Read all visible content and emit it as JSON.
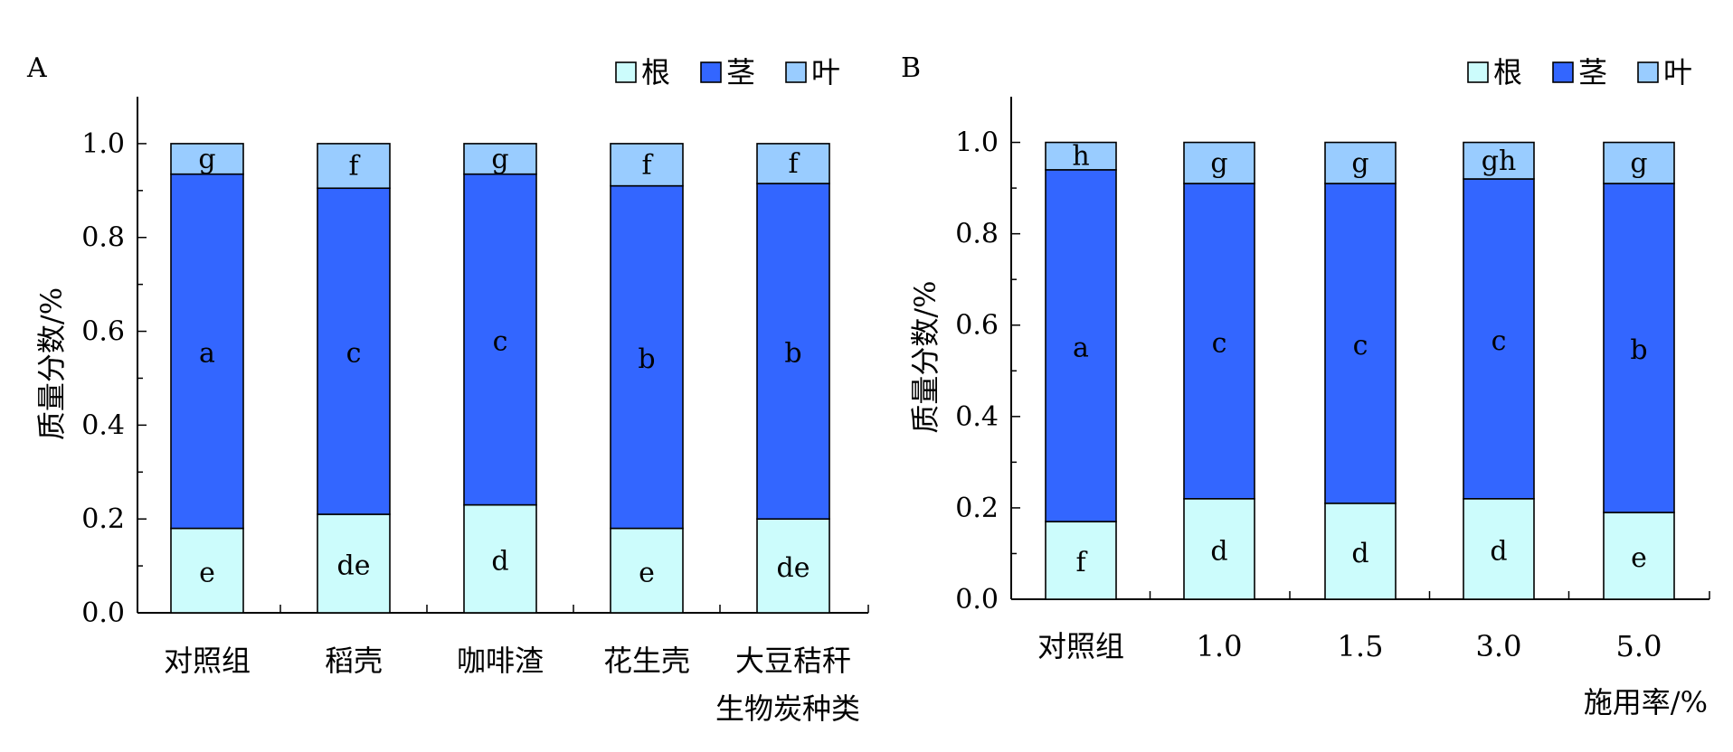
{
  "chart_data": [
    {
      "panel_label": "A",
      "type": "bar",
      "stacked": true,
      "xlabel": "生物炭种类",
      "ylabel": "质量分数/%",
      "ylim": [
        0,
        1.1
      ],
      "yticks": [
        "0.0",
        "0.2",
        "0.4",
        "0.6",
        "0.8",
        "1.0"
      ],
      "legend_position": "top-right",
      "categories": [
        "对照组",
        "稻壳",
        "咖啡渣",
        "花生壳",
        "大豆秸秆"
      ],
      "series": [
        {
          "name": "根",
          "color": "#ccfcfc",
          "values": [
            0.18,
            0.21,
            0.23,
            0.18,
            0.2
          ],
          "letters": [
            "e",
            "de",
            "d",
            "e",
            "de"
          ]
        },
        {
          "name": "茎",
          "color": "#3366ff",
          "values": [
            0.755,
            0.695,
            0.705,
            0.73,
            0.715
          ],
          "letters": [
            "a",
            "c",
            "c",
            "b",
            "b"
          ]
        },
        {
          "name": "叶",
          "color": "#99ccff",
          "values": [
            0.065,
            0.095,
            0.065,
            0.09,
            0.085
          ],
          "letters": [
            "g",
            "f",
            "g",
            "f",
            "f"
          ]
        }
      ]
    },
    {
      "panel_label": "B",
      "type": "bar",
      "stacked": true,
      "xlabel": "施用率/%",
      "ylabel": "质量分数/%",
      "ylim": [
        0,
        1.1
      ],
      "yticks": [
        "0.0",
        "0.2",
        "0.4",
        "0.6",
        "0.8",
        "1.0"
      ],
      "legend_position": "top-right",
      "categories": [
        "对照组",
        "1.0",
        "1.5",
        "3.0",
        "5.0"
      ],
      "series": [
        {
          "name": "根",
          "color": "#ccfcfc",
          "values": [
            0.17,
            0.22,
            0.21,
            0.22,
            0.19
          ],
          "letters": [
            "f",
            "d",
            "d",
            "d",
            "e"
          ]
        },
        {
          "name": "茎",
          "color": "#3366ff",
          "values": [
            0.77,
            0.69,
            0.7,
            0.7,
            0.72
          ],
          "letters": [
            "a",
            "c",
            "c",
            "c",
            "b"
          ]
        },
        {
          "name": "叶",
          "color": "#99ccff",
          "values": [
            0.06,
            0.09,
            0.09,
            0.08,
            0.09
          ],
          "letters": [
            "h",
            "g",
            "g",
            "gh",
            "g"
          ]
        }
      ]
    }
  ]
}
